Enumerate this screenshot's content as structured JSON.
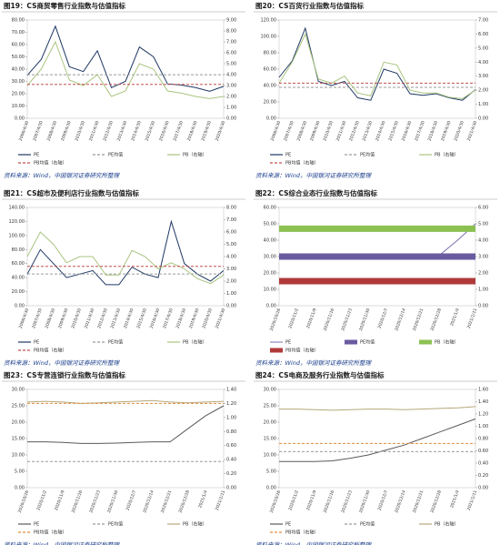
{
  "chart_data": [
    {
      "type": "line",
      "title": "图19：CS商贸零售行业指数与估值指标",
      "source": "资料来源：Wind，中国银河证券研究所整理",
      "categories": [
        "2006/4/30",
        "2007/4/30",
        "2008/4/30",
        "2009/4/30",
        "2010/4/30",
        "2011/4/30",
        "2012/4/30",
        "2013/4/30",
        "2014/4/30",
        "2015/4/30",
        "2016/4/30",
        "2017/4/30",
        "2018/4/30",
        "2019/4/30",
        "2020/4/30"
      ],
      "series": [
        {
          "name": "PE",
          "color": "#1f3864",
          "values": [
            35,
            48,
            75,
            42,
            38,
            55,
            25,
            30,
            58,
            50,
            28,
            27,
            25,
            22,
            26
          ]
        },
        {
          "name": "PE均值",
          "color": "#9a9a9a",
          "dash": true,
          "values": [
            35.45,
            35.45,
            35.45,
            35.45,
            35.45,
            35.45,
            35.45,
            35.45,
            35.45,
            35.45,
            35.45,
            35.45,
            35.45,
            35.45,
            35.45
          ]
        },
        {
          "name": "PB（右轴）",
          "color": "#a9c47f",
          "axis": "y2",
          "values": [
            3,
            4.5,
            7,
            3.5,
            3,
            4,
            2,
            2.5,
            5,
            4.5,
            2.5,
            2.3,
            2,
            1.8,
            2
          ]
        },
        {
          "name": "PB均值（右轴）",
          "color": "#c0504d",
          "dash": true,
          "axis": "y2",
          "values": [
            3.1,
            3.1,
            3.1,
            3.1,
            3.1,
            3.1,
            3.1,
            3.1,
            3.1,
            3.1,
            3.1,
            3.1,
            3.1,
            3.1,
            3.1
          ]
        }
      ],
      "ylim": [
        0,
        80
      ],
      "yticks": [
        {
          "value": 0,
          "label": "0.00"
        },
        {
          "value": 10,
          "label": "10.00"
        },
        {
          "value": 20,
          "label": "20.00"
        },
        {
          "value": 30,
          "label": "30.00"
        },
        {
          "value": 40,
          "label": "40.00"
        },
        {
          "value": 50,
          "label": "50.00"
        },
        {
          "value": 60,
          "label": "60.00"
        },
        {
          "value": 70,
          "label": "70.00"
        },
        {
          "value": 80,
          "label": "80.00"
        }
      ],
      "y2lim": [
        0,
        9
      ],
      "y2ticks": [
        {
          "value": 0,
          "label": "0.00"
        },
        {
          "value": 1,
          "label": "1.00"
        },
        {
          "value": 2,
          "label": "2.00"
        },
        {
          "value": 3,
          "label": "3.00"
        },
        {
          "value": 4,
          "label": "4.00"
        },
        {
          "value": 5,
          "label": "5.00"
        },
        {
          "value": 6,
          "label": "6.00"
        },
        {
          "value": 7,
          "label": "7.00"
        },
        {
          "value": 8,
          "label": "8.00"
        },
        {
          "value": 9,
          "label": "9.00"
        }
      ]
    },
    {
      "type": "line",
      "title": "图20：CS百货行业指数与估值指标",
      "source": "资料来源：Wind，中国银河证券研究所整理",
      "categories": [
        "2006/4/30",
        "2007/4/30",
        "2008/4/30",
        "2009/4/30",
        "2010/4/30",
        "2011/4/30",
        "2012/4/30",
        "2013/4/30",
        "2014/4/30",
        "2015/4/30",
        "2016/4/30",
        "2017/4/30",
        "2018/4/30",
        "2019/4/30",
        "2020/4/30",
        "2021/4/30"
      ],
      "series": [
        {
          "name": "PE",
          "color": "#1f3864",
          "values": [
            50,
            70,
            110,
            45,
            40,
            45,
            25,
            22,
            60,
            55,
            30,
            28,
            30,
            25,
            22,
            35
          ]
        },
        {
          "name": "PE均值",
          "color": "#9a9a9a",
          "dash": true,
          "values": [
            37.75,
            37.75,
            37.75,
            37.75,
            37.75,
            37.75,
            37.75,
            37.75,
            37.75,
            37.75,
            37.75,
            37.75,
            37.75,
            37.75,
            37.75,
            37.75
          ]
        },
        {
          "name": "PB（右轴）",
          "color": "#a9c47f",
          "axis": "y2",
          "values": [
            2.5,
            4,
            6,
            2.8,
            2.5,
            3,
            1.8,
            1.6,
            4,
            3.8,
            2,
            1.8,
            1.8,
            1.5,
            1.4,
            2
          ]
        },
        {
          "name": "PB均值（右轴）",
          "color": "#c0504d",
          "dash": true,
          "axis": "y2",
          "values": [
            2.5,
            2.5,
            2.5,
            2.5,
            2.5,
            2.5,
            2.5,
            2.5,
            2.5,
            2.5,
            2.5,
            2.5,
            2.5,
            2.5,
            2.5,
            2.5
          ]
        }
      ],
      "ylim": [
        0,
        120
      ],
      "yticks": [
        {
          "value": 0,
          "label": "0.00"
        },
        {
          "value": 20,
          "label": "20.00"
        },
        {
          "value": 40,
          "label": "40.00"
        },
        {
          "value": 60,
          "label": "60.00"
        },
        {
          "value": 80,
          "label": "80.00"
        },
        {
          "value": 100,
          "label": "100.00"
        },
        {
          "value": 120,
          "label": "120.00"
        }
      ],
      "y2lim": [
        0,
        7
      ],
      "y2ticks": [
        {
          "value": 0,
          "label": "0.00"
        },
        {
          "value": 1,
          "label": "1.00"
        },
        {
          "value": 2,
          "label": "2.00"
        },
        {
          "value": 3,
          "label": "3.00"
        },
        {
          "value": 4,
          "label": "4.00"
        },
        {
          "value": 5,
          "label": "5.00"
        },
        {
          "value": 6,
          "label": "6.00"
        },
        {
          "value": 7,
          "label": "7.00"
        }
      ]
    },
    {
      "type": "line",
      "title": "图21：CS超市及便利店行业指数与估值指标",
      "source": "资料来源：Wind，中国银河证券研究所整理",
      "categories": [
        "2006/4/30",
        "2007/4/30",
        "2008/4/30",
        "2009/4/30",
        "2010/4/30",
        "2011/4/30",
        "2012/4/30",
        "2013/4/30",
        "2014/4/30",
        "2015/4/30",
        "2016/4/30",
        "2017/4/30",
        "2018/4/30",
        "2019/4/30",
        "2020/4/30",
        "2021/4/30"
      ],
      "series": [
        {
          "name": "PE",
          "color": "#1f3864",
          "values": [
            45,
            80,
            60,
            40,
            45,
            50,
            30,
            30,
            55,
            45,
            40,
            120,
            60,
            45,
            35,
            50
          ]
        },
        {
          "name": "PE均值",
          "color": "#9a9a9a",
          "dash": true,
          "values": [
            45.18,
            45.18,
            45.18,
            45.18,
            45.18,
            45.18,
            45.18,
            45.18,
            45.18,
            45.18,
            45.18,
            45.18,
            45.18,
            45.18,
            45.18,
            45.18
          ]
        },
        {
          "name": "PB（右轴）",
          "color": "#a9c47f",
          "axis": "y2",
          "values": [
            4,
            6,
            5,
            3.5,
            4,
            4,
            2.5,
            2.5,
            4.5,
            4,
            3,
            3.5,
            3,
            2.2,
            1.8,
            2.5
          ]
        },
        {
          "name": "PB均值（右轴）",
          "color": "#c0504d",
          "dash": true,
          "axis": "y2",
          "values": [
            3.2,
            3.2,
            3.2,
            3.2,
            3.2,
            3.2,
            3.2,
            3.2,
            3.2,
            3.2,
            3.2,
            3.2,
            3.2,
            3.2,
            3.2,
            3.2
          ]
        }
      ],
      "ylim": [
        0,
        140
      ],
      "yticks": [
        {
          "value": 0,
          "label": "0.00"
        },
        {
          "value": 20,
          "label": "20.00"
        },
        {
          "value": 40,
          "label": "40.00"
        },
        {
          "value": 60,
          "label": "60.00"
        },
        {
          "value": 80,
          "label": "80.00"
        },
        {
          "value": 100,
          "label": "100.00"
        },
        {
          "value": 120,
          "label": "120.00"
        },
        {
          "value": 140,
          "label": "140.00"
        }
      ],
      "y2lim": [
        0,
        8
      ],
      "y2ticks": [
        {
          "value": 0,
          "label": "0.00"
        },
        {
          "value": 1,
          "label": "1.00"
        },
        {
          "value": 2,
          "label": "2.00"
        },
        {
          "value": 3,
          "label": "3.00"
        },
        {
          "value": 4,
          "label": "4.00"
        },
        {
          "value": 5,
          "label": "5.00"
        },
        {
          "value": 6,
          "label": "6.00"
        },
        {
          "value": 7,
          "label": "7.00"
        },
        {
          "value": 8,
          "label": "8.00"
        }
      ]
    },
    {
      "type": "line",
      "title": "图22：CS综合业态行业指数与估值指标",
      "source": "资料来源：Wind，中国银河证券研究所整理",
      "categories": [
        "2020/10/26",
        "2020/11/2",
        "2020/11/9",
        "2020/11/16",
        "2020/11/23",
        "2020/11/30",
        "2020/12/7",
        "2020/12/14",
        "2020/12/21",
        "2020/12/28",
        "2021/1/4",
        "2021/1/11"
      ],
      "series": [
        {
          "name": "PE",
          "color": "#7f6fb0",
          "width": 1,
          "values": [
            31,
            30.5,
            30,
            29.5,
            29,
            29,
            29.5,
            30,
            30.5,
            31,
            40,
            50
          ]
        },
        {
          "name": "PE均值",
          "color": "#6a5aa0",
          "width": 7,
          "values": [
            30,
            30,
            30,
            30,
            30,
            30,
            30,
            30,
            30,
            30,
            30,
            30
          ]
        },
        {
          "name": "PB（右轴）",
          "color": "#8cc152",
          "width": 7,
          "axis": "y2",
          "values": [
            4.7,
            4.7,
            4.7,
            4.7,
            4.7,
            4.7,
            4.7,
            4.7,
            4.7,
            4.7,
            4.7,
            4.7
          ]
        },
        {
          "name": "PB均值（右轴）",
          "color": "#b03a3a",
          "width": 7,
          "axis": "y2",
          "values": [
            1.5,
            1.5,
            1.5,
            1.5,
            1.5,
            1.5,
            1.5,
            1.5,
            1.5,
            1.5,
            1.5,
            1.5
          ]
        }
      ],
      "ylim": [
        0,
        60
      ],
      "yticks": [
        {
          "value": 0,
          "label": "0.00"
        },
        {
          "value": 10,
          "label": "10.00"
        },
        {
          "value": 20,
          "label": "20.00"
        },
        {
          "value": 30,
          "label": "30.00"
        },
        {
          "value": 40,
          "label": "40.00"
        },
        {
          "value": 50,
          "label": "50.00"
        },
        {
          "value": 60,
          "label": "60.00"
        }
      ],
      "y2lim": [
        0,
        6
      ],
      "y2ticks": [
        {
          "value": 0,
          "label": "0.00"
        },
        {
          "value": 1,
          "label": "1.00"
        },
        {
          "value": 2,
          "label": "2.00"
        },
        {
          "value": 3,
          "label": "3.00"
        },
        {
          "value": 4,
          "label": "4.00"
        },
        {
          "value": 5,
          "label": "5.00"
        },
        {
          "value": 6,
          "label": "6.00"
        }
      ]
    },
    {
      "type": "line",
      "title": "图23：CS专营连锁行业指数与估值指标",
      "source": "资料来源：Wind，中国银河证券研究所整理",
      "categories": [
        "2020/10/26",
        "2020/11/2",
        "2020/11/9",
        "2020/11/16",
        "2020/11/23",
        "2020/11/30",
        "2020/12/7",
        "2020/12/14",
        "2020/12/21",
        "2020/12/28",
        "2021/1/4",
        "2021/1/11"
      ],
      "series": [
        {
          "name": "PE",
          "color": "#595959",
          "values": [
            14,
            14,
            13.8,
            13.5,
            13.5,
            13.6,
            13.8,
            14,
            14,
            18,
            22,
            25
          ]
        },
        {
          "name": "PE均值",
          "color": "#9a9a9a",
          "dash": true,
          "values": [
            8,
            8,
            8,
            8,
            8,
            8,
            8,
            8,
            8,
            8,
            8,
            8
          ]
        },
        {
          "name": "PB（右轴）",
          "color": "#b5a87a",
          "axis": "y2",
          "values": [
            1.22,
            1.23,
            1.22,
            1.2,
            1.21,
            1.22,
            1.23,
            1.24,
            1.22,
            1.21,
            1.22,
            1.23
          ]
        },
        {
          "name": "PB均值（右轴）",
          "color": "#e08c3c",
          "dash": true,
          "axis": "y2",
          "values": [
            1.2,
            1.2,
            1.2,
            1.2,
            1.2,
            1.2,
            1.2,
            1.2,
            1.2,
            1.2,
            1.2,
            1.2
          ]
        }
      ],
      "ylim": [
        0,
        30
      ],
      "yticks": [
        {
          "value": 0,
          "label": "0.00"
        },
        {
          "value": 5,
          "label": "5.00"
        },
        {
          "value": 10,
          "label": "10.00"
        },
        {
          "value": 15,
          "label": "15.00"
        },
        {
          "value": 20,
          "label": "20.00"
        },
        {
          "value": 25,
          "label": "25.00"
        },
        {
          "value": 30,
          "label": "30.00"
        }
      ],
      "y2lim": [
        0,
        1.4
      ],
      "y2ticks": [
        {
          "value": 0,
          "label": "0.00"
        },
        {
          "value": 0.2,
          "label": "0.20"
        },
        {
          "value": 0.4,
          "label": "0.40"
        },
        {
          "value": 0.6,
          "label": "0.60"
        },
        {
          "value": 0.8,
          "label": "0.80"
        },
        {
          "value": 1,
          "label": "1.00"
        },
        {
          "value": 1.2,
          "label": "1.20"
        },
        {
          "value": 1.4,
          "label": "1.40"
        }
      ]
    },
    {
      "type": "line",
      "title": "图24：CS电商及服务行业指数与估值指标",
      "source": "资料来源：Wind，中国银河证券研究所整理",
      "categories": [
        "2020/10/26",
        "2020/11/2",
        "2020/11/9",
        "2020/11/16",
        "2020/11/23",
        "2020/11/30",
        "2020/12/7",
        "2020/12/14",
        "2020/12/21",
        "2020/12/28",
        "2021/1/4",
        "2021/1/11"
      ],
      "series": [
        {
          "name": "PE",
          "color": "#595959",
          "values": [
            8,
            8,
            8,
            8.2,
            9,
            10,
            11.5,
            13,
            15,
            17,
            19,
            21
          ]
        },
        {
          "name": "PE均值",
          "color": "#9a9a9a",
          "dash": true,
          "values": [
            11,
            11,
            11,
            11,
            11,
            11,
            11,
            11,
            11,
            11,
            11,
            11
          ]
        },
        {
          "name": "PB（右轴）",
          "color": "#b5a87a",
          "axis": "y2",
          "values": [
            1.28,
            1.28,
            1.27,
            1.26,
            1.27,
            1.28,
            1.28,
            1.27,
            1.28,
            1.29,
            1.3,
            1.32
          ]
        },
        {
          "name": "PB均值（右轴）",
          "color": "#e08c3c",
          "dash": true,
          "axis": "y2",
          "values": [
            0.72,
            0.72,
            0.72,
            0.72,
            0.72,
            0.72,
            0.72,
            0.72,
            0.72,
            0.72,
            0.72,
            0.72
          ]
        }
      ],
      "ylim": [
        0,
        30
      ],
      "yticks": [
        {
          "value": 0,
          "label": "0.00"
        },
        {
          "value": 5,
          "label": "5.00"
        },
        {
          "value": 10,
          "label": "10.00"
        },
        {
          "value": 15,
          "label": "15.00"
        },
        {
          "value": 20,
          "label": "20.00"
        },
        {
          "value": 25,
          "label": "25.00"
        },
        {
          "value": 30,
          "label": "30.00"
        }
      ],
      "y2lim": [
        0,
        1.6
      ],
      "y2ticks": [
        {
          "value": 0,
          "label": "0.00"
        },
        {
          "value": 0.2,
          "label": "0.20"
        },
        {
          "value": 0.4,
          "label": "0.40"
        },
        {
          "value": 0.6,
          "label": "0.60"
        },
        {
          "value": 0.8,
          "label": "0.80"
        },
        {
          "value": 1,
          "label": "1.00"
        },
        {
          "value": 1.2,
          "label": "1.20"
        },
        {
          "value": 1.4,
          "label": "1.40"
        },
        {
          "value": 1.6,
          "label": "1.60"
        }
      ]
    }
  ]
}
